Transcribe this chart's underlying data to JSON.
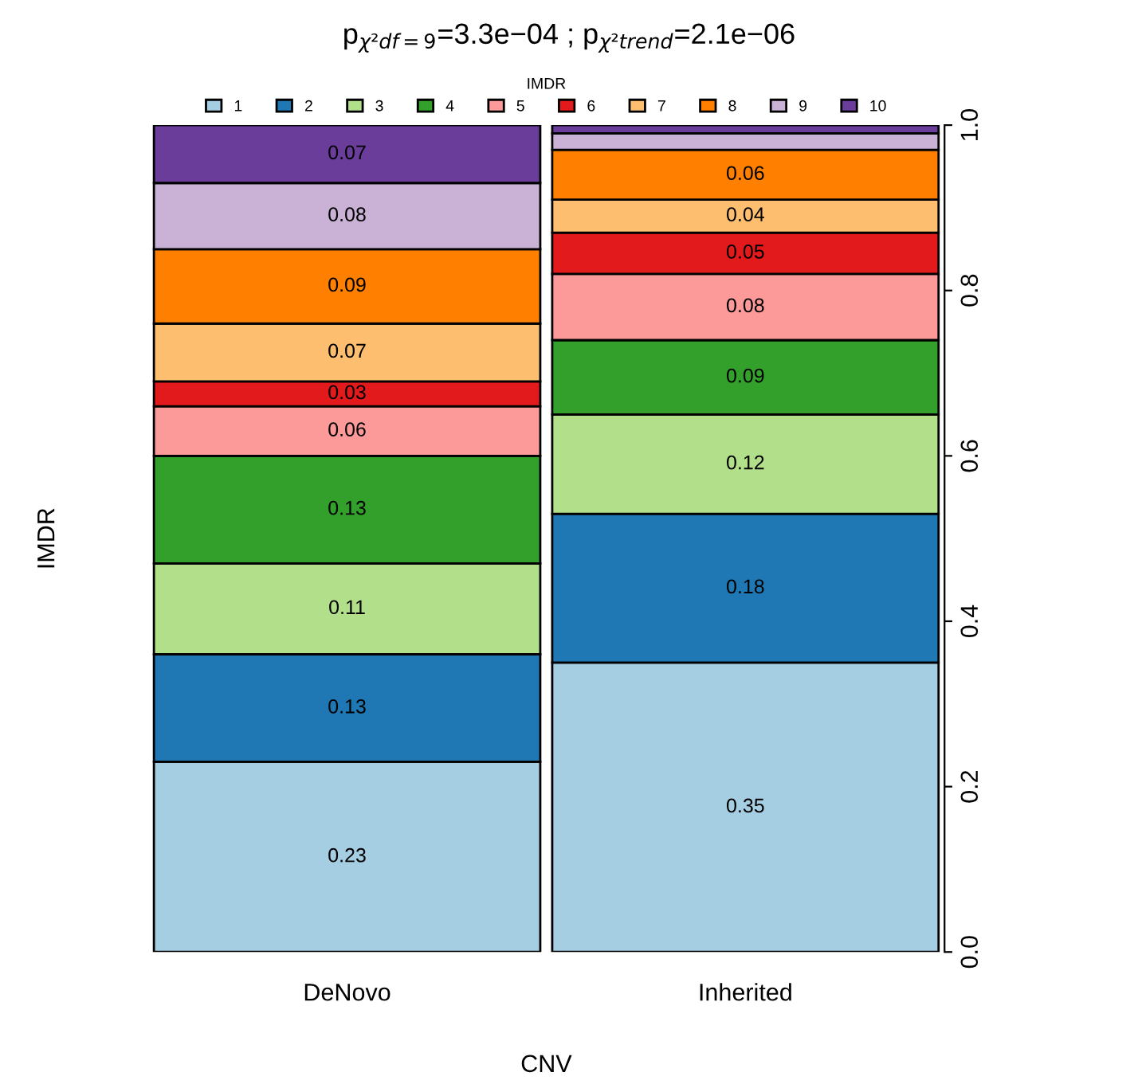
{
  "chart_data": {
    "type": "bar",
    "stacked": true,
    "title": "p$_{χ²df=9}$=3.3e−04 ; p$_{χ²trend}$=2.1e−06",
    "xlabel": "CNV",
    "ylabel": "IMDR",
    "legend_title": "IMDR",
    "legend": "top",
    "categories": [
      "DeNovo",
      "Inherited"
    ],
    "ylim": [
      0,
      1
    ],
    "yticks": [
      {
        "value": 0,
        "label": "0.0"
      },
      0.2,
      0.4,
      0.6,
      0.8,
      {
        "value": 1,
        "label": "1.0"
      }
    ],
    "series": [
      {
        "name": "1",
        "color": "#a6cee3",
        "values": [
          0.23,
          0.35
        ],
        "value_labels": [
          "0.23",
          "0.35"
        ]
      },
      {
        "name": "2",
        "color": "#1f78b4",
        "values": [
          0.13,
          0.18
        ],
        "value_labels": [
          "0.13",
          "0.18"
        ]
      },
      {
        "name": "3",
        "color": "#b2df8a",
        "values": [
          0.11,
          0.12
        ],
        "value_labels": [
          "0.11",
          "0.12"
        ]
      },
      {
        "name": "4",
        "color": "#33a02c",
        "values": [
          0.13,
          0.09
        ],
        "value_labels": [
          "0.13",
          "0.09"
        ]
      },
      {
        "name": "5",
        "color": "#fb9a99",
        "values": [
          0.06,
          0.08
        ],
        "value_labels": [
          "0.06",
          "0.08"
        ]
      },
      {
        "name": "6",
        "color": "#e31a1c",
        "values": [
          0.03,
          0.05
        ],
        "value_labels": [
          "0.03",
          "0.05"
        ]
      },
      {
        "name": "7",
        "color": "#fdbf6f",
        "values": [
          0.07,
          0.04
        ],
        "value_labels": [
          "0.07",
          "0.04"
        ]
      },
      {
        "name": "8",
        "color": "#ff7f00",
        "values": [
          0.09,
          0.06
        ],
        "value_labels": [
          "0.09",
          "0.06"
        ]
      },
      {
        "name": "9",
        "color": "#cab2d6",
        "values": [
          0.08,
          0.02
        ],
        "value_labels": [
          "0.08",
          null
        ]
      },
      {
        "name": "10",
        "color": "#6a3d9a",
        "values": [
          0.07,
          0.01
        ],
        "value_labels": [
          "0.07",
          null
        ]
      }
    ]
  }
}
